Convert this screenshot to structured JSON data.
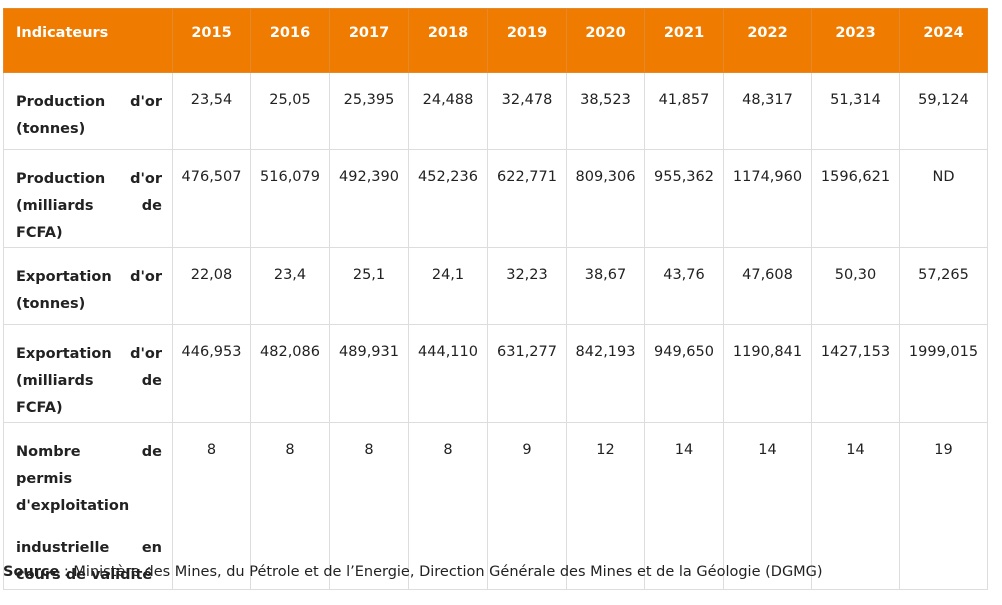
{
  "table": {
    "header_label": "Indicateurs",
    "years": [
      "2015",
      "2016",
      "2017",
      "2018",
      "2019",
      "2020",
      "2021",
      "2022",
      "2023",
      "2024"
    ],
    "rows": [
      {
        "label_line1_left": "Production",
        "label_line1_right": "d'or",
        "label_line2": "(tonnes)",
        "values": [
          "23,54",
          "25,05",
          "25,395",
          "24,488",
          "32,478",
          "38,523",
          "41,857",
          "48,317",
          "51,314",
          "59,124"
        ]
      },
      {
        "label_line1_left": "Production",
        "label_line1_right": "d'or",
        "label_line2": "(milliards de FCFA)",
        "values": [
          "476,507",
          "516,079",
          "492,390",
          "452,236",
          "622,771",
          "809,306",
          "955,362",
          "1174,960",
          "1596,621",
          "ND"
        ]
      },
      {
        "label_line1_left": "Exportation",
        "label_line1_right": "d'or",
        "label_line2": "(tonnes)",
        "values": [
          "22,08",
          "23,4",
          "25,1",
          "24,1",
          "32,23",
          "38,67",
          "43,76",
          "47,608",
          "50,30",
          "57,265"
        ]
      },
      {
        "label_line1_left": "Exportation",
        "label_line1_right": "d'or",
        "label_line2": "(milliards de FCFA)",
        "values": [
          "446,953",
          "482,086",
          "489,931",
          "444,110",
          "631,277",
          "842,193",
          "949,650",
          "1190,841",
          "1427,153",
          "1999,015"
        ]
      },
      {
        "label_line1": "Nombre de permis d'exploitation",
        "label_line2_left": "industrielle",
        "label_line2_right": "en",
        "label_line3": "cours de validité",
        "values": [
          "8",
          "8",
          "8",
          "8",
          "9",
          "12",
          "14",
          "14",
          "14",
          "19"
        ]
      }
    ]
  },
  "source": {
    "label": "Source",
    "text": " : Ministère des Mines, du Pétrole et de l’Energie, Direction Générale des Mines et de la Géologie (DGMG)"
  },
  "colors": {
    "header_background": "#ef7c00",
    "header_text": "#ffffff",
    "border": "#dddddd"
  }
}
